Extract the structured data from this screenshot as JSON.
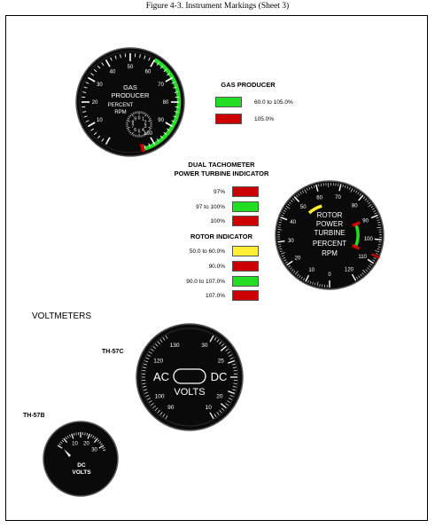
{
  "figure_title": "Figure 4-3. Instrument Markings  (Sheet 3)",
  "colors": {
    "green": "#22dd22",
    "red": "#cc0000",
    "yellow": "#ffee33",
    "dial": "#0a0a0a"
  },
  "gas_producer_gauge": {
    "outer_scale": [
      "10",
      "20",
      "30",
      "40",
      "50",
      "60",
      "70",
      "80",
      "90",
      "100"
    ],
    "inner_scale": [
      "0",
      "1",
      "2",
      "3",
      "4",
      "5",
      "6",
      "7",
      "8",
      "9"
    ],
    "line1": "GAS",
    "line2": "PRODUCER",
    "line3": "PERCENT",
    "line4": "RPM"
  },
  "gas_producer_legend": {
    "title": "GAS PRODUCER",
    "rows": [
      {
        "label": "60.0 to 105.0%",
        "color": "green"
      },
      {
        "label": "105.0%",
        "color": "red"
      }
    ]
  },
  "dual_tach_legend": {
    "title_line1": "DUAL TACHOMETER",
    "title_line2": "POWER TURBINE INDICATOR",
    "rows": [
      {
        "label": "97%",
        "color": "red"
      },
      {
        "label": "97 to 100%",
        "color": "green"
      },
      {
        "label": "100%",
        "color": "red"
      }
    ]
  },
  "rotor_legend": {
    "title": "ROTOR INDICATOR",
    "rows": [
      {
        "label": "50.0 to 60.0%",
        "color": "yellow"
      },
      {
        "label": "90.0%",
        "color": "red"
      },
      {
        "label": "90.0 to 107.0%",
        "color": "green"
      },
      {
        "label": "107.0%",
        "color": "red"
      }
    ]
  },
  "dual_tach_gauge": {
    "scale_labels": [
      "0",
      "10",
      "20",
      "30",
      "40",
      "50",
      "60",
      "70",
      "80",
      "90",
      "100",
      "110",
      "120"
    ],
    "line1": "ROTOR",
    "line2": "POWER",
    "line3": "TURBINE",
    "line4": "PERCENT",
    "line5": "RPM"
  },
  "voltmeters": {
    "section_title": "VOLTMETERS",
    "th57c": {
      "model": "TH-57C",
      "left_scale": [
        "90",
        "100",
        "120",
        "130"
      ],
      "right_scale": [
        "10",
        "20",
        "25",
        "30"
      ],
      "ac": "AC",
      "dc": "DC",
      "volts": "VOLTS"
    },
    "th57b": {
      "model": "TH-57B",
      "scale": [
        "10",
        "20",
        "30"
      ],
      "dc": "DC",
      "volts": "VOLTS"
    }
  }
}
